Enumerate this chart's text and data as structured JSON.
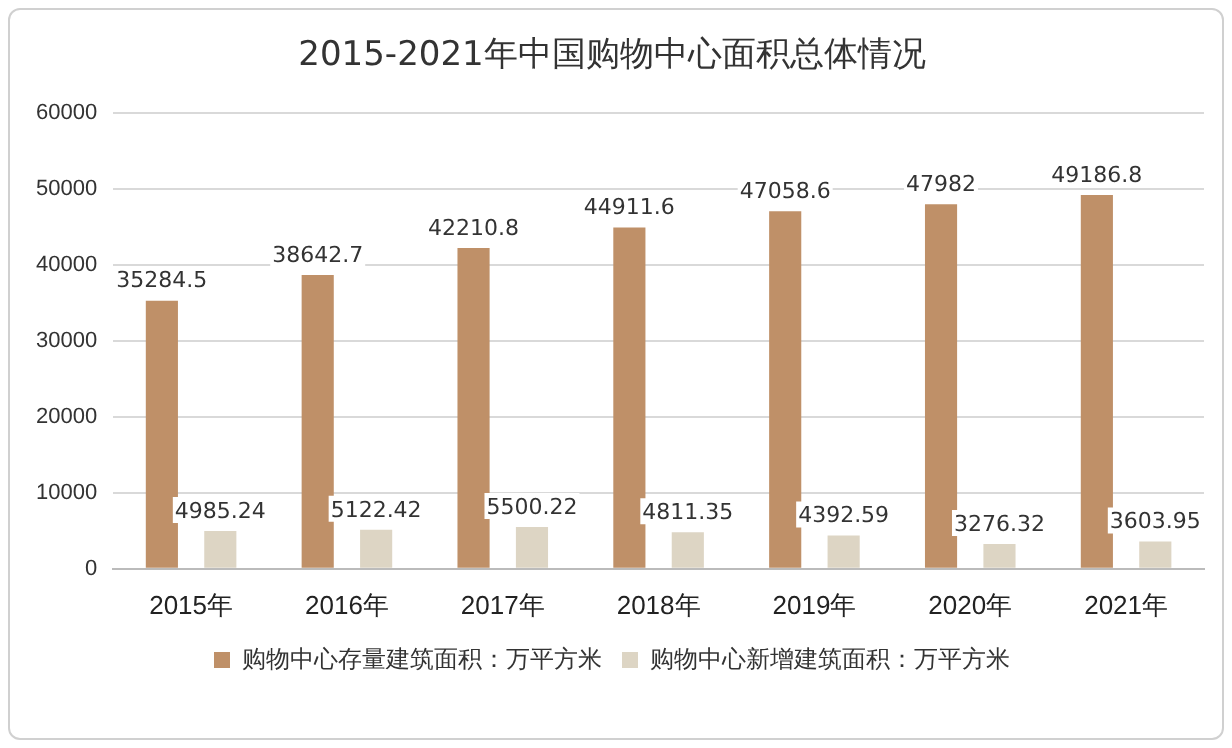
{
  "chart_data": {
    "type": "bar",
    "title": "2015-2021年中国购物中心面积总体情况",
    "categories": [
      "2015年",
      "2016年",
      "2017年",
      "2018年",
      "2019年",
      "2020年",
      "2021年"
    ],
    "series": [
      {
        "name": "购物中心存量建筑面积：万平方米",
        "color": "#bf9068",
        "values": [
          35284.5,
          38642.7,
          42210.8,
          44911.6,
          47058.6,
          47982,
          49186.8
        ]
      },
      {
        "name": "购物中心新增建筑面积：万平方米",
        "color": "#ddd5c4",
        "values": [
          4985.24,
          5122.42,
          5500.22,
          4811.35,
          4392.59,
          3276.32,
          3603.95
        ]
      }
    ],
    "ylim": [
      0,
      60000
    ],
    "yticks": [
      0,
      10000,
      20000,
      30000,
      40000,
      50000,
      60000
    ],
    "grid": "y",
    "legend": "bottom",
    "data_labels": true
  }
}
